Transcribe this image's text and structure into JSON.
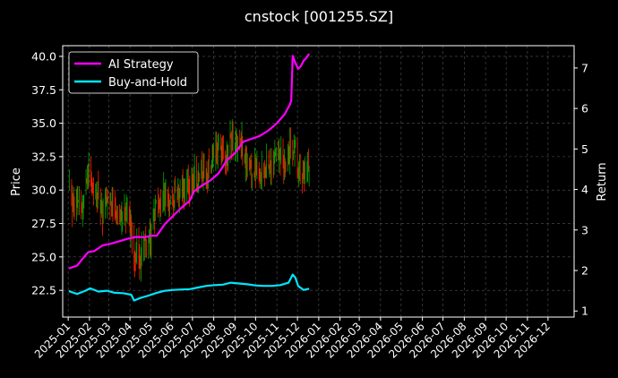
{
  "chart_data": {
    "type": "line",
    "title": "cnstock [001255.SZ]",
    "ylabel_left": "Price",
    "ylabel_right": "Return",
    "x_ticks": [
      "2025-01",
      "2025-02",
      "2025-03",
      "2025-04",
      "2025-05",
      "2025-06",
      "2025-07",
      "2025-08",
      "2025-09",
      "2025-10",
      "2025-11",
      "2025-12",
      "2026-01",
      "2026-02",
      "2026-03",
      "2026-04",
      "2026-05",
      "2026-06",
      "2026-07",
      "2026-08",
      "2026-09",
      "2026-10",
      "2026-11",
      "2026-12"
    ],
    "xlim": [
      "2024-12-24",
      "2027-01-08"
    ],
    "ylim_left": [
      20.5,
      40.8
    ],
    "ylim_right": [
      0.85,
      7.55
    ],
    "y_ticks_left": [
      "22.5",
      "25.0",
      "27.5",
      "30.0",
      "32.5",
      "35.0",
      "37.5",
      "40.0"
    ],
    "y_ticks_right": [
      "1",
      "2",
      "3",
      "4",
      "5",
      "6",
      "7"
    ],
    "grid": true,
    "legend_position": "top-left",
    "colors": {
      "up": "#00a800",
      "down": "#ff2000",
      "ai": "#ff00ff",
      "bh": "#00e5ff",
      "grid": "#555555"
    },
    "price_points": [
      [
        "2025-01-02",
        30.5
      ],
      [
        "2025-01-08",
        28.8
      ],
      [
        "2025-01-14",
        29.6
      ],
      [
        "2025-01-20",
        28.0
      ],
      [
        "2025-01-26",
        30.6
      ],
      [
        "2025-02-02",
        31.5
      ],
      [
        "2025-02-08",
        29.0
      ],
      [
        "2025-02-14",
        30.0
      ],
      [
        "2025-02-20",
        28.4
      ],
      [
        "2025-02-26",
        29.2
      ],
      [
        "2025-03-04",
        28.8
      ],
      [
        "2025-03-10",
        28.1
      ],
      [
        "2025-03-16",
        28.6
      ],
      [
        "2025-03-22",
        28.0
      ],
      [
        "2025-03-28",
        28.4
      ],
      [
        "2025-04-03",
        27.0
      ],
      [
        "2025-04-07",
        24.6
      ],
      [
        "2025-04-10",
        25.6
      ],
      [
        "2025-04-16",
        24.8
      ],
      [
        "2025-04-22",
        26.2
      ],
      [
        "2025-04-28",
        26.0
      ],
      [
        "2025-05-04",
        27.2
      ],
      [
        "2025-05-10",
        29.5
      ],
      [
        "2025-05-16",
        28.4
      ],
      [
        "2025-05-22",
        30.0
      ],
      [
        "2025-05-28",
        29.0
      ],
      [
        "2025-06-03",
        29.8
      ],
      [
        "2025-06-09",
        29.2
      ],
      [
        "2025-06-15",
        30.2
      ],
      [
        "2025-06-21",
        30.4
      ],
      [
        "2025-06-27",
        30.0
      ],
      [
        "2025-07-03",
        31.2
      ],
      [
        "2025-07-09",
        30.6
      ],
      [
        "2025-07-15",
        31.5
      ],
      [
        "2025-07-21",
        31.0
      ],
      [
        "2025-07-27",
        32.0
      ],
      [
        "2025-08-02",
        32.5
      ],
      [
        "2025-08-08",
        33.6
      ],
      [
        "2025-08-14",
        33.0
      ],
      [
        "2025-08-20",
        32.6
      ],
      [
        "2025-08-26",
        34.0
      ],
      [
        "2025-09-01",
        33.0
      ],
      [
        "2025-09-07",
        34.5
      ],
      [
        "2025-09-13",
        32.6
      ],
      [
        "2025-09-19",
        31.8
      ],
      [
        "2025-09-25",
        31.2
      ],
      [
        "2025-10-01",
        31.8
      ],
      [
        "2025-10-07",
        30.6
      ],
      [
        "2025-10-13",
        31.5
      ],
      [
        "2025-10-19",
        32.2
      ],
      [
        "2025-10-25",
        31.8
      ],
      [
        "2025-10-31",
        33.0
      ],
      [
        "2025-11-06",
        32.4
      ],
      [
        "2025-11-12",
        31.8
      ],
      [
        "2025-11-18",
        32.6
      ],
      [
        "2025-11-24",
        33.4
      ],
      [
        "2025-11-28",
        33.8
      ],
      [
        "2025-12-02",
        31.2
      ],
      [
        "2025-12-06",
        30.6
      ],
      [
        "2025-12-10",
        30.9
      ],
      [
        "2025-12-14",
        31.4
      ],
      [
        "2025-12-18",
        31.7
      ]
    ],
    "ai_strategy": [
      [
        "2025-01-02",
        2.05
      ],
      [
        "2025-01-14",
        2.12
      ],
      [
        "2025-01-20",
        2.25
      ],
      [
        "2025-01-30",
        2.45
      ],
      [
        "2025-02-08",
        2.48
      ],
      [
        "2025-02-20",
        2.62
      ],
      [
        "2025-03-04",
        2.66
      ],
      [
        "2025-03-16",
        2.72
      ],
      [
        "2025-03-28",
        2.78
      ],
      [
        "2025-04-10",
        2.83
      ],
      [
        "2025-04-22",
        2.82
      ],
      [
        "2025-05-02",
        2.86
      ],
      [
        "2025-05-10",
        2.86
      ],
      [
        "2025-05-22",
        3.15
      ],
      [
        "2025-06-03",
        3.35
      ],
      [
        "2025-06-15",
        3.55
      ],
      [
        "2025-06-27",
        3.72
      ],
      [
        "2025-07-03",
        3.95
      ],
      [
        "2025-07-15",
        4.1
      ],
      [
        "2025-07-27",
        4.22
      ],
      [
        "2025-08-08",
        4.4
      ],
      [
        "2025-08-20",
        4.72
      ],
      [
        "2025-09-01",
        4.9
      ],
      [
        "2025-09-13",
        5.18
      ],
      [
        "2025-09-25",
        5.25
      ],
      [
        "2025-10-07",
        5.32
      ],
      [
        "2025-10-19",
        5.45
      ],
      [
        "2025-10-31",
        5.62
      ],
      [
        "2025-11-12",
        5.85
      ],
      [
        "2025-11-20",
        6.1
      ],
      [
        "2025-11-22",
        6.2
      ],
      [
        "2025-11-24",
        7.3
      ],
      [
        "2025-11-28",
        7.12
      ],
      [
        "2025-12-02",
        6.98
      ],
      [
        "2025-12-06",
        7.05
      ],
      [
        "2025-12-10",
        7.18
      ],
      [
        "2025-12-14",
        7.25
      ],
      [
        "2025-12-18",
        7.35
      ]
    ],
    "buy_and_hold": [
      [
        "2025-01-02",
        1.49
      ],
      [
        "2025-01-14",
        1.42
      ],
      [
        "2025-01-26",
        1.5
      ],
      [
        "2025-02-02",
        1.56
      ],
      [
        "2025-02-14",
        1.48
      ],
      [
        "2025-02-26",
        1.5
      ],
      [
        "2025-03-10",
        1.45
      ],
      [
        "2025-03-22",
        1.44
      ],
      [
        "2025-04-03",
        1.4
      ],
      [
        "2025-04-07",
        1.26
      ],
      [
        "2025-04-16",
        1.32
      ],
      [
        "2025-04-28",
        1.38
      ],
      [
        "2025-05-10",
        1.45
      ],
      [
        "2025-05-22",
        1.5
      ],
      [
        "2025-06-03",
        1.52
      ],
      [
        "2025-06-15",
        1.53
      ],
      [
        "2025-06-27",
        1.54
      ],
      [
        "2025-07-09",
        1.58
      ],
      [
        "2025-07-21",
        1.62
      ],
      [
        "2025-08-02",
        1.64
      ],
      [
        "2025-08-14",
        1.65
      ],
      [
        "2025-08-26",
        1.7
      ],
      [
        "2025-09-07",
        1.68
      ],
      [
        "2025-09-19",
        1.66
      ],
      [
        "2025-10-01",
        1.63
      ],
      [
        "2025-10-13",
        1.62
      ],
      [
        "2025-10-25",
        1.62
      ],
      [
        "2025-11-06",
        1.64
      ],
      [
        "2025-11-18",
        1.7
      ],
      [
        "2025-11-24",
        1.9
      ],
      [
        "2025-11-28",
        1.82
      ],
      [
        "2025-12-02",
        1.62
      ],
      [
        "2025-12-10",
        1.52
      ],
      [
        "2025-12-18",
        1.55
      ]
    ],
    "legend": [
      {
        "label": "AI Strategy",
        "series": "ai"
      },
      {
        "label": "Buy-and-Hold",
        "series": "bh"
      }
    ]
  }
}
